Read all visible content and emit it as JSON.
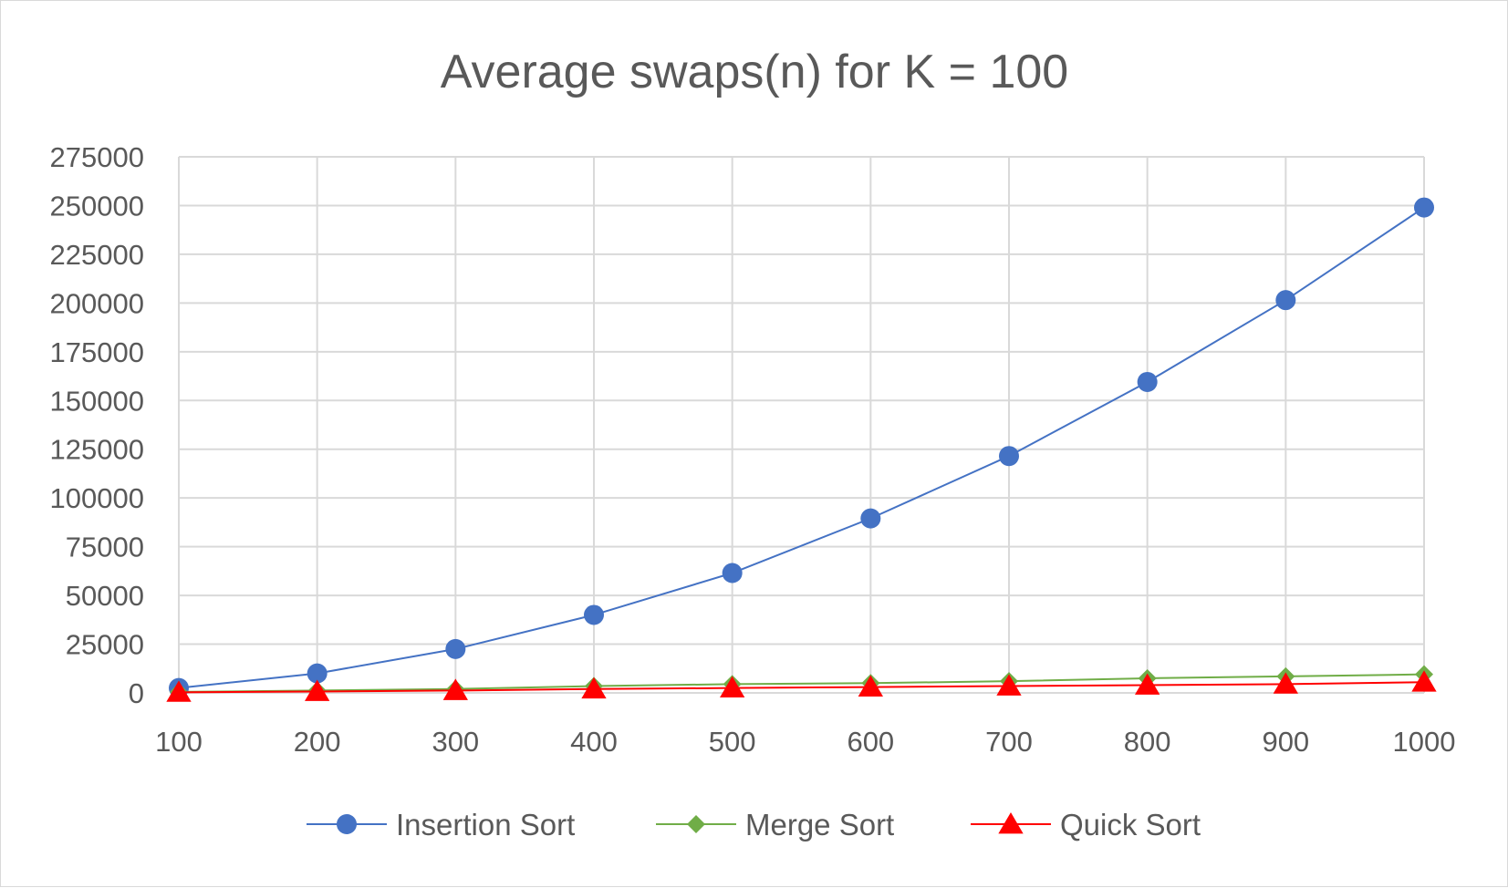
{
  "chart_data": {
    "type": "line",
    "title": "Average swaps(n) for K = 100",
    "xlabel": "",
    "ylabel": "",
    "categories": [
      "100",
      "200",
      "300",
      "400",
      "500",
      "600",
      "700",
      "800",
      "900",
      "1000"
    ],
    "ylim": [
      0,
      275000
    ],
    "yticks": [
      "0",
      "25000",
      "50000",
      "75000",
      "100000",
      "125000",
      "150000",
      "175000",
      "200000",
      "225000",
      "250000",
      "275000"
    ],
    "grid": true,
    "legend_position": "bottom",
    "series": [
      {
        "name": "Insertion Sort",
        "color": "#4472c4",
        "marker": "circle",
        "values": [
          2500,
          10000,
          22500,
          40000,
          61500,
          89500,
          121500,
          159500,
          201500,
          249000
        ]
      },
      {
        "name": "Merge Sort",
        "color": "#70ad47",
        "marker": "diamond",
        "values": [
          500,
          1200,
          2000,
          3500,
          4500,
          5000,
          6000,
          7500,
          8500,
          9500
        ]
      },
      {
        "name": "Quick Sort",
        "color": "#ff0000",
        "marker": "triangle",
        "values": [
          300,
          700,
          1200,
          2000,
          2500,
          3000,
          3500,
          4000,
          4500,
          5500
        ]
      }
    ]
  }
}
